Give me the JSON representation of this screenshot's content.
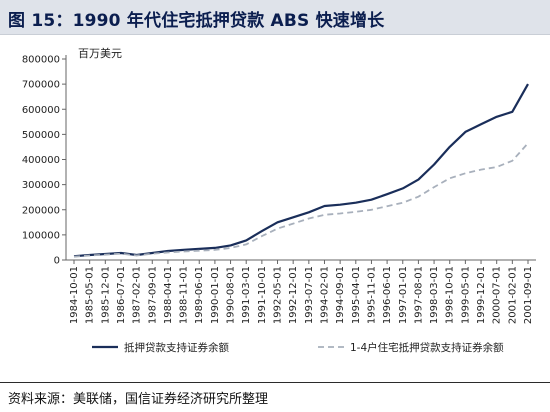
{
  "figure": {
    "title": "图 15：1990 年代住宅抵押贷款 ABS 快速增长",
    "source": "资料来源：美联储，国信证券经济研究所整理"
  },
  "colors": {
    "series_1": "#1a2e5a",
    "series_2": "#a8b0bc",
    "title_band": "#dfe3ea",
    "title_text": "#0b1e4f"
  },
  "chart_data": {
    "type": "line",
    "title": "",
    "ylabel": "百万美元",
    "xlabel": "",
    "ylim": [
      0,
      800000
    ],
    "yticks": [
      0,
      100000,
      200000,
      300000,
      400000,
      500000,
      600000,
      700000,
      800000
    ],
    "ytick_labels": [
      "0",
      "100000",
      "200000",
      "300000",
      "400000",
      "500000",
      "600000",
      "700000",
      "800000"
    ],
    "x_tick_labels": [
      "1984-10-01",
      "1985-05-01",
      "1985-12-01",
      "1986-07-01",
      "1987-02-01",
      "1987-09-01",
      "1988-04-01",
      "1988-11-01",
      "1989-06-01",
      "1990-01-01",
      "1990-08-01",
      "1991-03-01",
      "1991-10-01",
      "1992-05-01",
      "1992-12-01",
      "1993-07-01",
      "1994-02-01",
      "1994-09-01",
      "1995-04-01",
      "1995-11-01",
      "1996-06-01",
      "1997-01-01",
      "1997-08-01",
      "1998-03-01",
      "1998-10-01",
      "1999-05-01",
      "1999-12-01",
      "2000-07-01",
      "2001-02-01",
      "2001-09-01"
    ],
    "x": [
      "1984-10-01",
      "1985-05-01",
      "1985-12-01",
      "1986-07-01",
      "1987-02-01",
      "1987-09-01",
      "1988-04-01",
      "1988-11-01",
      "1989-06-01",
      "1990-01-01",
      "1990-08-01",
      "1991-03-01",
      "1991-10-01",
      "1992-05-01",
      "1992-12-01",
      "1993-07-01",
      "1994-02-01",
      "1994-09-01",
      "1995-04-01",
      "1995-11-01",
      "1996-06-01",
      "1997-01-01",
      "1997-08-01",
      "1998-03-01",
      "1998-10-01",
      "1999-05-01",
      "1999-12-01",
      "2000-07-01",
      "2001-02-01",
      "2001-09-01"
    ],
    "series": [
      {
        "name": "抵押贷款支持证券余额",
        "style": "solid",
        "values": [
          15000,
          20000,
          24000,
          28000,
          20000,
          28000,
          36000,
          40000,
          44000,
          48000,
          58000,
          78000,
          115000,
          150000,
          170000,
          190000,
          215000,
          220000,
          228000,
          240000,
          262000,
          285000,
          320000,
          380000,
          450000,
          510000,
          540000,
          570000,
          590000,
          700000
        ]
      },
      {
        "name": "1-4户住宅抵押贷款支持证券余额",
        "style": "dashed",
        "values": [
          13000,
          18000,
          21000,
          25000,
          18000,
          25000,
          30000,
          34000,
          37000,
          40000,
          48000,
          62000,
          95000,
          125000,
          145000,
          165000,
          180000,
          185000,
          192000,
          200000,
          214000,
          228000,
          252000,
          290000,
          325000,
          345000,
          360000,
          370000,
          395000,
          465000
        ]
      }
    ],
    "legend_position": "bottom",
    "grid": false
  }
}
